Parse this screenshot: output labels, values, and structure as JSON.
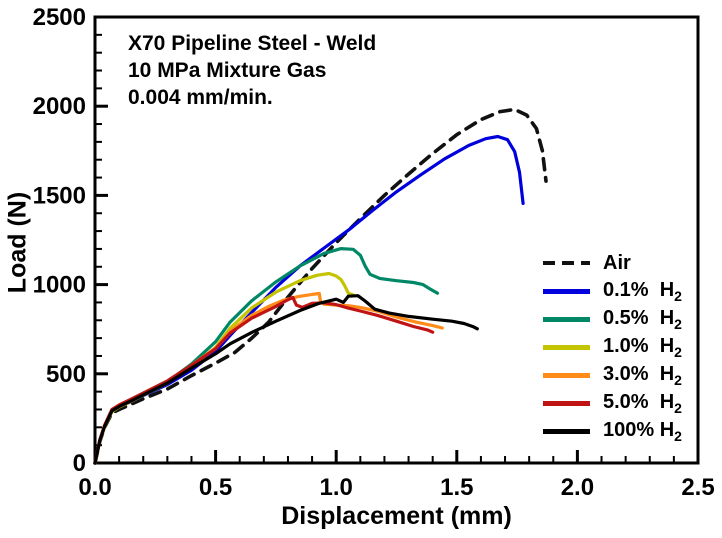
{
  "chart_data": {
    "type": "line",
    "title": "",
    "xlabel": "Displacement (mm)",
    "ylabel": "Load (N)",
    "xlim": [
      0,
      2.5
    ],
    "ylim": [
      0,
      2500
    ],
    "x_ticks": [
      0,
      0.5,
      1.0,
      1.5,
      2.0,
      2.5
    ],
    "x_tick_labels": [
      "0.0",
      "0.5",
      "1.0",
      "1.5",
      "2.0",
      "2.5"
    ],
    "x_minor_step": 0.1,
    "y_ticks": [
      0,
      500,
      1000,
      1500,
      2000,
      2500
    ],
    "y_tick_labels": [
      "0",
      "500",
      "1000",
      "1500",
      "2000",
      "2500"
    ],
    "y_minor_step": 100,
    "grid": false,
    "legend_position": "inside-right",
    "annotation": [
      "X70 Pipeline Steel - Weld",
      "10 MPa Mixture Gas",
      "0.004 mm/min."
    ],
    "series": [
      {
        "name": "Air",
        "label_main": "Air",
        "label_sub": "",
        "color": "#111111",
        "dash": true,
        "points": [
          [
            0,
            0
          ],
          [
            0.02,
            120
          ],
          [
            0.04,
            200
          ],
          [
            0.07,
            280
          ],
          [
            0.1,
            300
          ],
          [
            0.15,
            330
          ],
          [
            0.2,
            360
          ],
          [
            0.3,
            415
          ],
          [
            0.4,
            490
          ],
          [
            0.5,
            560
          ],
          [
            0.58,
            620
          ],
          [
            0.65,
            700
          ],
          [
            0.72,
            790
          ],
          [
            0.8,
            930
          ],
          [
            0.9,
            1090
          ],
          [
            1.0,
            1235
          ],
          [
            1.1,
            1370
          ],
          [
            1.2,
            1500
          ],
          [
            1.3,
            1620
          ],
          [
            1.4,
            1735
          ],
          [
            1.5,
            1840
          ],
          [
            1.6,
            1925
          ],
          [
            1.68,
            1970
          ],
          [
            1.74,
            1982
          ],
          [
            1.79,
            1950
          ],
          [
            1.83,
            1875
          ],
          [
            1.855,
            1750
          ],
          [
            1.87,
            1580
          ]
        ]
      },
      {
        "name": "0.1% H2",
        "label_main": "0.1%  H",
        "label_sub": "2",
        "color": "#0000DD",
        "dash": false,
        "points": [
          [
            0,
            0
          ],
          [
            0.02,
            125
          ],
          [
            0.04,
            205
          ],
          [
            0.07,
            290
          ],
          [
            0.1,
            315
          ],
          [
            0.15,
            345
          ],
          [
            0.2,
            378
          ],
          [
            0.3,
            440
          ],
          [
            0.4,
            520
          ],
          [
            0.5,
            625
          ],
          [
            0.56,
            715
          ],
          [
            0.65,
            845
          ],
          [
            0.75,
            985
          ],
          [
            0.85,
            1105
          ],
          [
            0.95,
            1205
          ],
          [
            1.05,
            1305
          ],
          [
            1.15,
            1415
          ],
          [
            1.25,
            1520
          ],
          [
            1.35,
            1615
          ],
          [
            1.45,
            1705
          ],
          [
            1.55,
            1780
          ],
          [
            1.62,
            1818
          ],
          [
            1.67,
            1830
          ],
          [
            1.71,
            1812
          ],
          [
            1.74,
            1745
          ],
          [
            1.76,
            1630
          ],
          [
            1.775,
            1455
          ]
        ]
      },
      {
        "name": "0.5% H2",
        "label_main": "0.5%  H",
        "label_sub": "2",
        "color": "#008866",
        "dash": false,
        "points": [
          [
            0,
            0
          ],
          [
            0.02,
            125
          ],
          [
            0.04,
            205
          ],
          [
            0.07,
            292
          ],
          [
            0.1,
            318
          ],
          [
            0.15,
            350
          ],
          [
            0.2,
            385
          ],
          [
            0.3,
            455
          ],
          [
            0.4,
            555
          ],
          [
            0.5,
            680
          ],
          [
            0.56,
            790
          ],
          [
            0.65,
            910
          ],
          [
            0.75,
            1015
          ],
          [
            0.85,
            1105
          ],
          [
            0.95,
            1175
          ],
          [
            1.02,
            1202
          ],
          [
            1.07,
            1198
          ],
          [
            1.1,
            1165
          ],
          [
            1.12,
            1105
          ],
          [
            1.14,
            1058
          ],
          [
            1.18,
            1035
          ],
          [
            1.25,
            1022
          ],
          [
            1.32,
            1012
          ],
          [
            1.36,
            1000
          ],
          [
            1.39,
            975
          ],
          [
            1.42,
            952
          ]
        ]
      },
      {
        "name": "1.0% H2",
        "label_main": "1.0%  H",
        "label_sub": "2",
        "color": "#C4C400",
        "dash": false,
        "points": [
          [
            0,
            0
          ],
          [
            0.02,
            122
          ],
          [
            0.04,
            202
          ],
          [
            0.07,
            288
          ],
          [
            0.1,
            314
          ],
          [
            0.15,
            346
          ],
          [
            0.2,
            380
          ],
          [
            0.3,
            448
          ],
          [
            0.4,
            540
          ],
          [
            0.5,
            648
          ],
          [
            0.56,
            755
          ],
          [
            0.65,
            870
          ],
          [
            0.75,
            958
          ],
          [
            0.85,
            1022
          ],
          [
            0.92,
            1052
          ],
          [
            0.97,
            1062
          ],
          [
            1.0,
            1048
          ],
          [
            1.02,
            1028
          ],
          [
            1.035,
            995
          ],
          [
            1.05,
            952
          ],
          [
            1.07,
            942
          ]
        ]
      },
      {
        "name": "3.0% H2",
        "label_main": "3.0%  H",
        "label_sub": "2",
        "color": "#FF8C19",
        "dash": false,
        "points": [
          [
            0,
            0
          ],
          [
            0.02,
            128
          ],
          [
            0.04,
            210
          ],
          [
            0.07,
            298
          ],
          [
            0.1,
            322
          ],
          [
            0.15,
            355
          ],
          [
            0.2,
            390
          ],
          [
            0.3,
            458
          ],
          [
            0.4,
            548
          ],
          [
            0.5,
            645
          ],
          [
            0.56,
            738
          ],
          [
            0.65,
            828
          ],
          [
            0.72,
            878
          ],
          [
            0.78,
            912
          ],
          [
            0.84,
            932
          ],
          [
            0.9,
            945
          ],
          [
            0.93,
            950
          ],
          [
            0.935,
            905
          ],
          [
            0.95,
            890
          ],
          [
            1.0,
            885
          ],
          [
            1.05,
            882
          ],
          [
            1.1,
            872
          ],
          [
            1.17,
            852
          ],
          [
            1.25,
            818
          ],
          [
            1.33,
            790
          ],
          [
            1.4,
            770
          ],
          [
            1.44,
            757
          ]
        ]
      },
      {
        "name": "5.0% H2",
        "label_main": "5.0%  H",
        "label_sub": "2",
        "color": "#C01414",
        "dash": false,
        "points": [
          [
            0,
            0
          ],
          [
            0.02,
            130
          ],
          [
            0.04,
            212
          ],
          [
            0.07,
            300
          ],
          [
            0.1,
            325
          ],
          [
            0.15,
            358
          ],
          [
            0.2,
            392
          ],
          [
            0.3,
            460
          ],
          [
            0.4,
            548
          ],
          [
            0.5,
            640
          ],
          [
            0.56,
            728
          ],
          [
            0.65,
            812
          ],
          [
            0.7,
            845
          ],
          [
            0.75,
            878
          ],
          [
            0.79,
            908
          ],
          [
            0.82,
            928
          ],
          [
            0.835,
            885
          ],
          [
            0.86,
            872
          ],
          [
            0.9,
            895
          ],
          [
            0.95,
            898
          ],
          [
            1.0,
            888
          ],
          [
            1.05,
            868
          ],
          [
            1.1,
            852
          ],
          [
            1.17,
            828
          ],
          [
            1.25,
            795
          ],
          [
            1.32,
            765
          ],
          [
            1.38,
            745
          ],
          [
            1.4,
            733
          ]
        ]
      },
      {
        "name": "100% H2",
        "label_main": "100% H",
        "label_sub": "2",
        "color": "#000000",
        "dash": false,
        "points": [
          [
            0,
            0
          ],
          [
            0.02,
            125
          ],
          [
            0.04,
            205
          ],
          [
            0.07,
            292
          ],
          [
            0.1,
            316
          ],
          [
            0.15,
            348
          ],
          [
            0.2,
            382
          ],
          [
            0.3,
            448
          ],
          [
            0.4,
            532
          ],
          [
            0.5,
            612
          ],
          [
            0.56,
            668
          ],
          [
            0.65,
            732
          ],
          [
            0.75,
            795
          ],
          [
            0.85,
            855
          ],
          [
            0.93,
            895
          ],
          [
            1.0,
            918
          ],
          [
            1.03,
            900
          ],
          [
            1.05,
            935
          ],
          [
            1.09,
            938
          ],
          [
            1.12,
            908
          ],
          [
            1.16,
            862
          ],
          [
            1.22,
            840
          ],
          [
            1.3,
            822
          ],
          [
            1.4,
            806
          ],
          [
            1.48,
            795
          ],
          [
            1.53,
            782
          ],
          [
            1.57,
            763
          ],
          [
            1.585,
            752
          ]
        ]
      }
    ]
  }
}
